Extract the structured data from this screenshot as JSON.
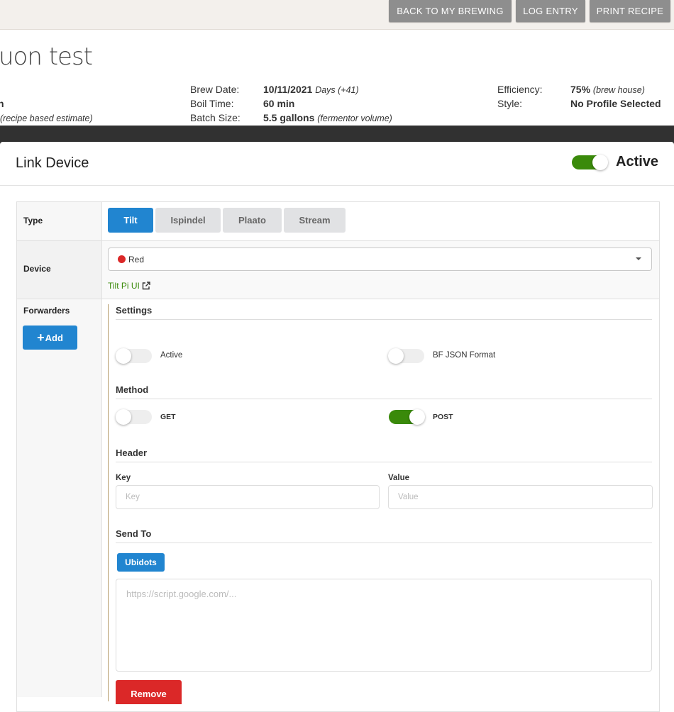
{
  "topbar": {
    "buttons": [
      "BACK TO MY BREWING",
      "LOG ENTRY",
      "PRINT RECIPE"
    ]
  },
  "page": {
    "title": "uon test",
    "left_partial": "h",
    "left_note": "(recipe based estimate)",
    "brew_date_label": "Brew Date:",
    "brew_date": "10/11/2021",
    "brew_days": "Days (+41)",
    "boil_label": "Boil Time:",
    "boil": "60 min",
    "batch_label": "Batch Size:",
    "batch": "5.5 gallons",
    "batch_note": "(fermentor volume)",
    "eff_label": "Efficiency:",
    "eff": "75%",
    "eff_note": "(brew house)",
    "style_label": "Style:",
    "style": "No Profile Selected"
  },
  "modal": {
    "title": "Link Device",
    "active_label": "Active",
    "active": true,
    "type_label": "Type",
    "types": [
      "Tilt",
      "Ispindel",
      "Plaato",
      "Stream"
    ],
    "selected_type": "Tilt",
    "device_label": "Device",
    "device_value": "Red",
    "device_color": "#db2828",
    "device_link": "Tilt Pi UI",
    "forwarders_label": "Forwarders",
    "add_label": "Add",
    "settings": {
      "title": "Settings",
      "active_label": "Active",
      "active": false,
      "bf_label": "BF JSON Format",
      "bf": false
    },
    "method": {
      "title": "Method",
      "get_label": "GET",
      "get": false,
      "post_label": "POST",
      "post": true
    },
    "header": {
      "title": "Header",
      "key_label": "Key",
      "key_placeholder": "Key",
      "value_label": "Value",
      "value_placeholder": "Value"
    },
    "send_to": {
      "title": "Send To",
      "ubidots_label": "Ubidots",
      "url_placeholder": "https://script.google.com/..."
    },
    "remove_label": "Remove"
  },
  "colors": {
    "accent": "#2185d0",
    "toggle_on": "#3a8a0a",
    "danger": "#db2828",
    "link": "#3a8a0a"
  }
}
